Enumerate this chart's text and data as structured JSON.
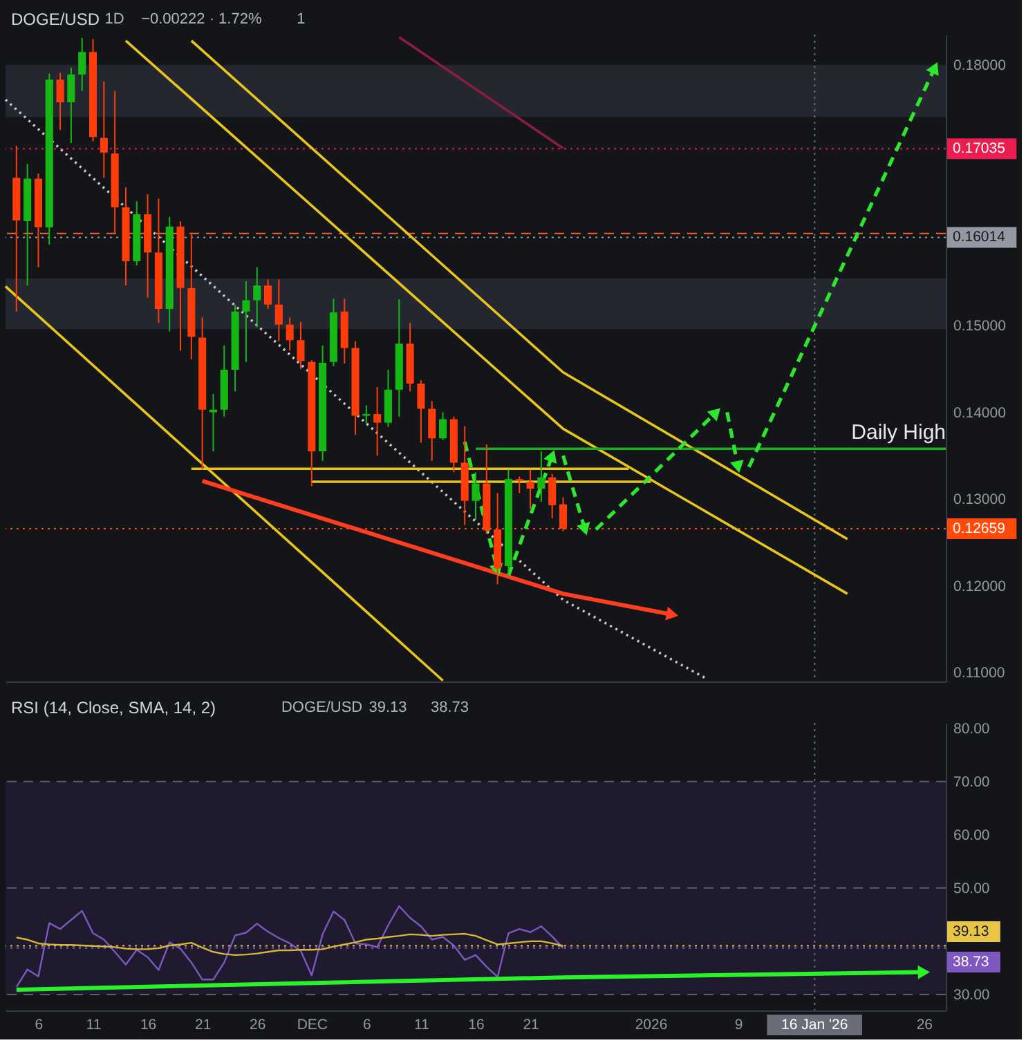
{
  "chart_data": [
    {
      "type": "candlestick",
      "title": "DOGE/USD",
      "annotations": [
        "1D",
        "−0.00222 · 1.72%",
        "1"
      ],
      "x": [
        "2025-11-04",
        "2025-11-05",
        "2025-11-06",
        "2025-11-07",
        "2025-11-08",
        "2025-11-09",
        "2025-11-10",
        "2025-11-11",
        "2025-11-12",
        "2025-11-13",
        "2025-11-14",
        "2025-11-15",
        "2025-11-16",
        "2025-11-17",
        "2025-11-18",
        "2025-11-19",
        "2025-11-20",
        "2025-11-21",
        "2025-11-22",
        "2025-11-23",
        "2025-11-24",
        "2025-11-25",
        "2025-11-26",
        "2025-11-27",
        "2025-11-28",
        "2025-11-29",
        "2025-11-30",
        "2025-12-01",
        "2025-12-02",
        "2025-12-03",
        "2025-12-04",
        "2025-12-05",
        "2025-12-06",
        "2025-12-07",
        "2025-12-08",
        "2025-12-09",
        "2025-12-10",
        "2025-12-11",
        "2025-12-12",
        "2025-12-13",
        "2025-12-14",
        "2025-12-15",
        "2025-12-16",
        "2025-12-17",
        "2025-12-18",
        "2025-12-19",
        "2025-12-20",
        "2025-12-21",
        "2025-12-22",
        "2025-12-23",
        "2025-12-24"
      ],
      "ohlc": [
        [
          0.167,
          0.1707,
          0.1516,
          0.1621
        ],
        [
          0.162,
          0.1686,
          0.1546,
          0.1669
        ],
        [
          0.1669,
          0.1675,
          0.1567,
          0.1613
        ],
        [
          0.1613,
          0.179,
          0.1593,
          0.1783
        ],
        [
          0.1783,
          0.1791,
          0.1725,
          0.1757
        ],
        [
          0.1757,
          0.1797,
          0.171,
          0.1789
        ],
        [
          0.1789,
          0.1831,
          0.177,
          0.1815
        ],
        [
          0.1815,
          0.183,
          0.1712,
          0.1717
        ],
        [
          0.1716,
          0.1781,
          0.167,
          0.1699
        ],
        [
          0.1698,
          0.177,
          0.1606,
          0.1636
        ],
        [
          0.1636,
          0.1659,
          0.1546,
          0.1574
        ],
        [
          0.1574,
          0.1643,
          0.1569,
          0.1628
        ],
        [
          0.1628,
          0.1651,
          0.1532,
          0.1584
        ],
        [
          0.1584,
          0.1646,
          0.1503,
          0.1519
        ],
        [
          0.1519,
          0.1625,
          0.1493,
          0.1614
        ],
        [
          0.1614,
          0.162,
          0.1471,
          0.1543
        ],
        [
          0.1543,
          0.1606,
          0.1461,
          0.1487
        ],
        [
          0.1486,
          0.1509,
          0.1334,
          0.1403
        ],
        [
          0.14,
          0.1421,
          0.1355,
          0.1403
        ],
        [
          0.1403,
          0.1477,
          0.1395,
          0.1449
        ],
        [
          0.1449,
          0.1524,
          0.1424,
          0.1516
        ],
        [
          0.1516,
          0.1551,
          0.1458,
          0.1529
        ],
        [
          0.1529,
          0.1567,
          0.1498,
          0.1546
        ],
        [
          0.1546,
          0.1553,
          0.1519,
          0.1524
        ],
        [
          0.1524,
          0.1553,
          0.1482,
          0.1501
        ],
        [
          0.1501,
          0.1509,
          0.1471,
          0.1483
        ],
        [
          0.1483,
          0.1504,
          0.145,
          0.1459
        ],
        [
          0.1458,
          0.146,
          0.1315,
          0.1355
        ],
        [
          0.1355,
          0.1477,
          0.1344,
          0.1457
        ],
        [
          0.1458,
          0.1531,
          0.1453,
          0.1515
        ],
        [
          0.1516,
          0.1531,
          0.1456,
          0.1474
        ],
        [
          0.1474,
          0.1482,
          0.1374,
          0.1396
        ],
        [
          0.1396,
          0.1408,
          0.1387,
          0.1398
        ],
        [
          0.1398,
          0.1429,
          0.135,
          0.1388
        ],
        [
          0.1388,
          0.1449,
          0.1383,
          0.1426
        ],
        [
          0.1426,
          0.153,
          0.1395,
          0.1479
        ],
        [
          0.1479,
          0.1503,
          0.1424,
          0.1433
        ],
        [
          0.1433,
          0.1437,
          0.1365,
          0.1404
        ],
        [
          0.1404,
          0.1413,
          0.1344,
          0.137
        ],
        [
          0.137,
          0.14,
          0.1368,
          0.1392
        ],
        [
          0.1392,
          0.1395,
          0.1331,
          0.1342
        ],
        [
          0.1342,
          0.1384,
          0.127,
          0.1298
        ],
        [
          0.1298,
          0.1331,
          0.1276,
          0.1318
        ],
        [
          0.1318,
          0.1363,
          0.126,
          0.1264
        ],
        [
          0.1265,
          0.1307,
          0.1202,
          0.122
        ],
        [
          0.1223,
          0.1334,
          0.1212,
          0.1323
        ],
        [
          0.1323,
          0.1326,
          0.1307,
          0.1321
        ],
        [
          0.132,
          0.1334,
          0.1289,
          0.1312
        ],
        [
          0.1312,
          0.1355,
          0.1297,
          0.1325
        ],
        [
          0.1325,
          0.1329,
          0.1278,
          0.1293
        ],
        [
          0.1294,
          0.1302,
          0.1263,
          0.12659
        ]
      ],
      "colors": [
        "#ff3d0a",
        "#16b816",
        "#ff3d0a",
        "#16b816",
        "#ff3d0a",
        "#16b816",
        "#16b816",
        "#ff3d0a",
        "#ff3d0a",
        "#ff3d0a",
        "#ff3d0a",
        "#16b816",
        "#ff3d0a",
        "#ff3d0a",
        "#16b816",
        "#ff3d0a",
        "#ff3d0a",
        "#ff3d0a",
        "#16b816",
        "#16b816",
        "#16b816",
        "#16b816",
        "#16b816",
        "#ff3d0a",
        "#ff3d0a",
        "#ff3d0a",
        "#ff3d0a",
        "#ff3d0a",
        "#16b816",
        "#16b816",
        "#ff3d0a",
        "#ff3d0a",
        "#16b816",
        "#ff3d0a",
        "#16b816",
        "#16b816",
        "#ff3d0a",
        "#ff3d0a",
        "#ff3d0a",
        "#16b816",
        "#ff3d0a",
        "#ff3d0a",
        "#16b816",
        "#ff3d0a",
        "#ff3d0a",
        "#16b816",
        "#ff3d0a",
        "#ff3d0a",
        "#16b816",
        "#ff3d0a",
        "#ff3d0a"
      ],
      "series": [
        {
          "type": "line",
          "x": [
            "2025-12-09",
            "2025-12-24"
          ],
          "values": [
            0.1832,
            0.1704
          ],
          "color": "#8b1e3f"
        },
        {
          "type": "line",
          "x": [
            "2025-11-03",
            "2025-12-24",
            "2026-01-06"
          ],
          "values": [
            0.176,
            0.1184,
            0.1094
          ],
          "color": "#c8c8c8",
          "line_style": "dotted"
        },
        {
          "type": "line",
          "x": [
            "2025-11-03",
            "2025-12-13"
          ],
          "values": [
            0.1545,
            0.1091
          ],
          "color": "#e8c51d"
        },
        {
          "type": "line",
          "x": [
            "2025-11-14",
            "2025-12-24",
            "2026-01-19"
          ],
          "values": [
            0.1828,
            0.1381,
            0.1191
          ],
          "color": "#e8c51d"
        },
        {
          "type": "line",
          "x": [
            "2025-11-20",
            "2025-12-24",
            "2026-01-19"
          ],
          "values": [
            0.1828,
            0.1446,
            0.1254
          ],
          "color": "#e8c51d"
        },
        {
          "type": "line",
          "x": [
            "2025-11-20",
            "2025-12-30"
          ],
          "values": [
            0.1335,
            0.1335
          ],
          "color": "#e8c51d"
        },
        {
          "type": "line",
          "x": [
            "2025-12-01",
            "2026-01-01"
          ],
          "values": [
            0.132,
            0.132
          ],
          "color": "#e8c51d"
        },
        {
          "type": "line",
          "name": "Daily High",
          "x": [
            "2025-12-16",
            "2026-01-28"
          ],
          "values": [
            0.1358,
            0.1358
          ],
          "color": "#1fae1f"
        }
      ],
      "xlim": [
        "2025-11-03",
        "2026-01-28"
      ],
      "ylim": [
        0.109,
        0.1835
      ],
      "yticks": [
        {
          "value": 0.11,
          "label": "0.11000"
        },
        {
          "value": 0.12,
          "label": "0.12000"
        },
        {
          "value": 0.13,
          "label": "0.13000"
        },
        {
          "value": 0.14,
          "label": "0.14000"
        },
        {
          "value": 0.15,
          "label": "0.15000"
        },
        {
          "value": 0.18,
          "label": "0.18000"
        }
      ],
      "tick_labels": "y",
      "bands": [
        {
          "axis": "y",
          "from": 0.174,
          "to": 0.18,
          "color": "#24272f"
        },
        {
          "axis": "y",
          "from": 0.1496,
          "to": 0.1554,
          "color": "#24272f"
        }
      ],
      "ref_lines": [
        {
          "axis": "y",
          "value": 0.17035,
          "label": "0.17035",
          "color": "#e91e4f",
          "line_style": "dotted"
        },
        {
          "axis": "y",
          "value": 0.1606,
          "color": "#f0662a",
          "line_style": "dashed"
        },
        {
          "axis": "y",
          "value": 0.16014,
          "label": "0.16014",
          "color": "#9598a1",
          "line_style": "dotted"
        },
        {
          "axis": "y",
          "value": 0.12659,
          "label": "0.12659",
          "color": "#ff4a0a",
          "line_style": "dotted"
        },
        {
          "axis": "x",
          "value": "2026-01-16",
          "color": "#6a6d78",
          "line_style": "dotted"
        }
      ]
    },
    {
      "type": "line",
      "title": "RSI (14, Close, SMA, 14, 2)",
      "subtitle": "DOGE/USD",
      "annotations": [
        "39.13",
        "38.73"
      ],
      "x": [
        "2025-11-04",
        "2025-11-05",
        "2025-11-06",
        "2025-11-07",
        "2025-11-08",
        "2025-11-09",
        "2025-11-10",
        "2025-11-11",
        "2025-11-12",
        "2025-11-13",
        "2025-11-14",
        "2025-11-15",
        "2025-11-16",
        "2025-11-17",
        "2025-11-18",
        "2025-11-19",
        "2025-11-20",
        "2025-11-21",
        "2025-11-22",
        "2025-11-23",
        "2025-11-24",
        "2025-11-25",
        "2025-11-26",
        "2025-11-27",
        "2025-11-28",
        "2025-11-29",
        "2025-11-30",
        "2025-12-01",
        "2025-12-02",
        "2025-12-03",
        "2025-12-04",
        "2025-12-05",
        "2025-12-06",
        "2025-12-07",
        "2025-12-08",
        "2025-12-09",
        "2025-12-10",
        "2025-12-11",
        "2025-12-12",
        "2025-12-13",
        "2025-12-14",
        "2025-12-15",
        "2025-12-16",
        "2025-12-17",
        "2025-12-18",
        "2025-12-19",
        "2025-12-20",
        "2025-12-21",
        "2025-12-22",
        "2025-12-23",
        "2025-12-24"
      ],
      "series": [
        {
          "color": "#7e57c2",
          "values": [
            31.4,
            34.7,
            33.4,
            43.4,
            42.3,
            44.0,
            45.7,
            41.5,
            40.3,
            38.0,
            35.6,
            38.4,
            37.0,
            34.6,
            39.8,
            38.6,
            36.0,
            32.8,
            32.8,
            36.0,
            41.1,
            41.6,
            43.3,
            41.8,
            40.6,
            39.6,
            38.2,
            33.6,
            41.3,
            45.6,
            44.0,
            39.6,
            39.4,
            38.9,
            43.0,
            46.6,
            44.4,
            42.8,
            40.3,
            40.8,
            39.2,
            36.5,
            37.4,
            35.2,
            33.3,
            41.5,
            42.3,
            41.7,
            42.8,
            40.9,
            38.7
          ]
        },
        {
          "color": "#d4b83a",
          "values": [
            40.7,
            40.3,
            39.6,
            39.4,
            39.3,
            39.3,
            39.2,
            39.1,
            39.0,
            38.9,
            38.6,
            38.5,
            38.5,
            38.7,
            39.2,
            39.4,
            39.7,
            38.8,
            38.0,
            37.6,
            37.4,
            37.5,
            37.7,
            38.0,
            38.3,
            38.3,
            38.4,
            38.4,
            38.5,
            39.0,
            39.4,
            39.8,
            40.3,
            40.5,
            40.8,
            41.0,
            41.3,
            41.2,
            41.0,
            41.2,
            41.3,
            41.4,
            41.0,
            40.2,
            39.4,
            39.6,
            39.8,
            40.0,
            40.0,
            39.6,
            39.1
          ]
        }
      ],
      "xlim": [
        "2025-11-03",
        "2026-01-28"
      ],
      "ylim": [
        27,
        81
      ],
      "xticks": [
        {
          "value": "2025-11-06",
          "label": "6"
        },
        {
          "value": "2025-11-11",
          "label": "11"
        },
        {
          "value": "2025-11-16",
          "label": "16"
        },
        {
          "value": "2025-11-21",
          "label": "21"
        },
        {
          "value": "2025-11-26",
          "label": "26"
        },
        {
          "value": "2025-12-01",
          "label": "DEC"
        },
        {
          "value": "2025-12-06",
          "label": "6"
        },
        {
          "value": "2025-12-11",
          "label": "11"
        },
        {
          "value": "2025-12-16",
          "label": "16"
        },
        {
          "value": "2025-12-21",
          "label": "21"
        },
        {
          "value": "2026-01-01",
          "label": "2026"
        },
        {
          "value": "2026-01-09",
          "label": "9"
        },
        {
          "value": "2026-01-26",
          "label": "26"
        }
      ],
      "yticks": [
        {
          "value": 30,
          "label": "30.00"
        },
        {
          "value": 50,
          "label": "50.00"
        },
        {
          "value": 60,
          "label": "60.00"
        },
        {
          "value": 70,
          "label": "70.00"
        },
        {
          "value": 80,
          "label": "80.00"
        }
      ],
      "bands": [
        {
          "axis": "y",
          "from": 30,
          "to": 70,
          "color": "#1f1a2e"
        }
      ],
      "ref_lines": [
        {
          "axis": "y",
          "value": 70,
          "color": "#5d606b",
          "line_style": "dashed"
        },
        {
          "axis": "y",
          "value": 50,
          "color": "#5d606b",
          "line_style": "dashed"
        },
        {
          "axis": "y",
          "value": 30,
          "color": "#5d606b",
          "line_style": "dashed"
        },
        {
          "axis": "y",
          "value": 39.13,
          "label": "39.13",
          "color": "#e8c547",
          "line_style": "dotted"
        },
        {
          "axis": "y",
          "value": 38.73,
          "label": "38.73",
          "color": "#7e57c2",
          "line_style": "dotted"
        },
        {
          "axis": "x",
          "value": "2026-01-16",
          "label": "16 Jan '26",
          "color": "#6a6d78",
          "line_style": "dotted"
        }
      ]
    }
  ]
}
